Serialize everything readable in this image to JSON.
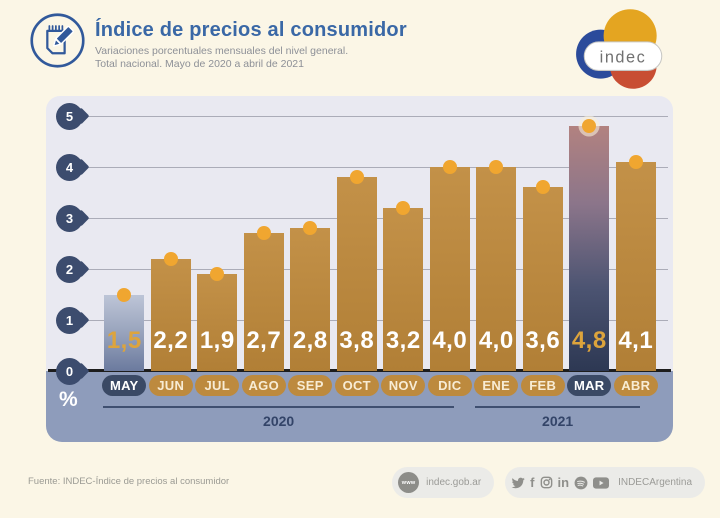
{
  "header": {
    "title": "Índice de precios al consumidor",
    "subtitle_line1": "Variaciones porcentuales mensuales del nivel general.",
    "subtitle_line2": "Total nacional. Mayo de 2020 a abril de 2021",
    "logo_text": "indec"
  },
  "chart_data": {
    "type": "bar",
    "title": "Índice de precios al consumidor",
    "subtitle": "Variaciones porcentuales mensuales del nivel general. Total nacional. Mayo de 2020 a abril de 2021",
    "categories": [
      "MAY",
      "JUN",
      "JUL",
      "AGO",
      "SEP",
      "OCT",
      "NOV",
      "DIC",
      "ENE",
      "FEB",
      "MAR",
      "ABR"
    ],
    "values": [
      1.5,
      2.2,
      1.9,
      2.7,
      2.8,
      3.8,
      3.2,
      4.0,
      4.0,
      3.6,
      4.8,
      4.1
    ],
    "ylabel": "%",
    "ylim": [
      0,
      5
    ],
    "yticks": [
      0,
      1,
      2,
      3,
      4,
      5
    ],
    "grid": "horizontal",
    "legend": "none",
    "bars": [
      {
        "month": "MAY",
        "label": "1,5",
        "value": 1.5,
        "variant": "slate"
      },
      {
        "month": "JUN",
        "label": "2,2",
        "value": 2.2,
        "variant": "default"
      },
      {
        "month": "JUL",
        "label": "1,9",
        "value": 1.9,
        "variant": "default"
      },
      {
        "month": "AGO",
        "label": "2,7",
        "value": 2.7,
        "variant": "default"
      },
      {
        "month": "SEP",
        "label": "2,8",
        "value": 2.8,
        "variant": "default"
      },
      {
        "month": "OCT",
        "label": "3,8",
        "value": 3.8,
        "variant": "default"
      },
      {
        "month": "NOV",
        "label": "3,2",
        "value": 3.2,
        "variant": "default"
      },
      {
        "month": "DIC",
        "label": "4,0",
        "value": 4.0,
        "variant": "default"
      },
      {
        "month": "ENE",
        "label": "4,0",
        "value": 4.0,
        "variant": "default"
      },
      {
        "month": "FEB",
        "label": "3,6",
        "value": 3.6,
        "variant": "default"
      },
      {
        "month": "MAR",
        "label": "4,8",
        "value": 4.8,
        "variant": "navy"
      },
      {
        "month": "ABR",
        "label": "4,1",
        "value": 4.1,
        "variant": "default"
      }
    ],
    "year_groups": [
      {
        "label": "2020",
        "start_index": 0,
        "end_index": 7
      },
      {
        "label": "2021",
        "start_index": 8,
        "end_index": 11
      }
    ],
    "colors": {
      "bar_default": "#bb873d",
      "bar_may_top": "#bdc5d7",
      "bar_may_bottom": "#6b7a9e",
      "bar_mar_top": "#b28280",
      "bar_mar_bottom": "#2d3853",
      "dot": "#f0a630",
      "value_text": "#ffffff",
      "value_text_highlight": "#dda43c",
      "axis_pin": "#3c4c6e",
      "plot_background": "#e9e9f1",
      "bottom_band": "#8e9cbb",
      "month_pill": "#bd8a3e",
      "month_pill_dark": "#3a4965"
    }
  },
  "footer": {
    "source": "Fuente: INDEC-Índice de precios al consumidor",
    "www_label": "www",
    "website": "indec.gob.ar",
    "social_handle": "INDECArgentina",
    "social_icons": [
      "twitter",
      "facebook",
      "instagram",
      "linkedin",
      "spotify",
      "youtube"
    ]
  }
}
